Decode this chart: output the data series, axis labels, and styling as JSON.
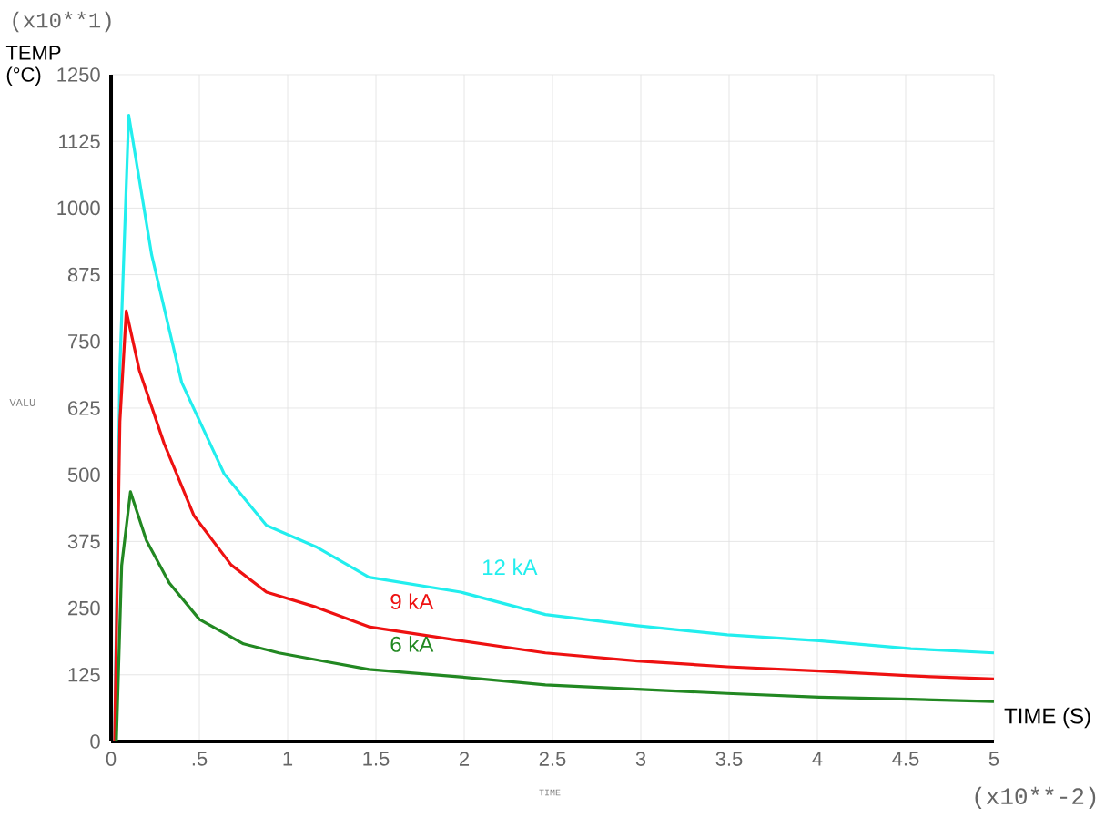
{
  "chart_data": {
    "type": "line",
    "ylabel": "TEMP (°C)",
    "xlabel": "TIME (S)",
    "annotations": [
      "(x10**1)",
      "VALU",
      "(x10**-2)",
      "TIME"
    ],
    "xlim": [
      0,
      5
    ],
    "ylim": [
      0,
      1250
    ],
    "xticks": [
      0,
      {
        "value": 0.5,
        "label": ".5"
      },
      1,
      {
        "value": 1.5,
        "label": "1.5"
      },
      2,
      {
        "value": 2.5,
        "label": "2.5"
      },
      3,
      {
        "value": 3.5,
        "label": "3.5"
      },
      4,
      {
        "value": 4.5,
        "label": "4.5"
      },
      5
    ],
    "yticks": [
      0,
      125,
      250,
      375,
      500,
      625,
      750,
      875,
      1000,
      1125,
      1250
    ],
    "grid": true,
    "legend": false,
    "marker": "none",
    "line_style": "solid",
    "series": [
      {
        "name": "12 kA",
        "color": "#22eeee",
        "x": [
          0.02,
          0.05,
          0.1,
          0.23,
          0.4,
          0.64,
          0.88,
          1.16,
          1.46,
          1.98,
          2.46,
          2.98,
          3.49,
          4.01,
          4.53,
          5.0
        ],
        "values": [
          0,
          700,
          1174,
          912,
          673,
          502,
          405,
          365,
          308,
          280,
          238,
          217,
          200,
          189,
          174,
          166
        ]
      },
      {
        "name": "9 kA",
        "color": "#ee1111",
        "x": [
          0.02,
          0.05,
          0.086,
          0.16,
          0.3,
          0.47,
          0.68,
          0.88,
          1.16,
          1.46,
          1.98,
          2.46,
          2.98,
          3.49,
          4.01,
          4.53,
          5.0
        ],
        "values": [
          0,
          600,
          807,
          696,
          559,
          423,
          331,
          280,
          252,
          215,
          189,
          166,
          151,
          140,
          132,
          123,
          117
        ]
      },
      {
        "name": "6 kA",
        "color": "#228822",
        "x": [
          0.03,
          0.06,
          0.11,
          0.2,
          0.33,
          0.5,
          0.75,
          0.95,
          1.23,
          1.46,
          1.98,
          2.46,
          2.98,
          3.49,
          4.01,
          4.53,
          5.0
        ],
        "values": [
          0,
          330,
          468,
          377,
          297,
          229,
          183,
          166,
          149,
          135,
          121,
          106,
          98,
          90,
          83,
          79,
          75
        ]
      }
    ]
  }
}
